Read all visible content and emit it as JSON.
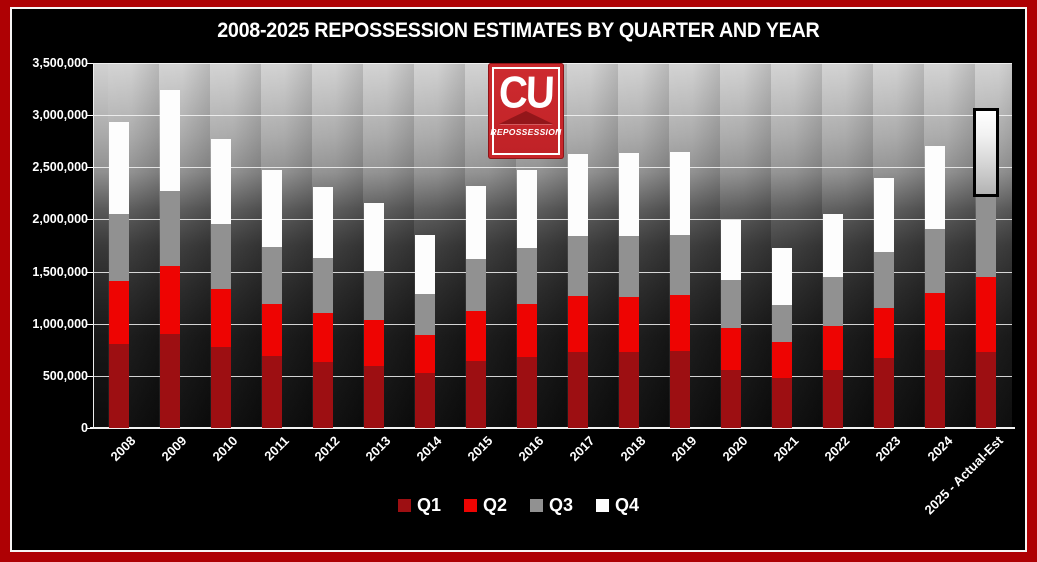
{
  "frame": {
    "border_color": "#ae0104",
    "inner_line_color": "#f6f4f4",
    "background": "#000000"
  },
  "title": "2008-2025 REPOSSESSION ESTIMATES BY QUARTER AND YEAR",
  "logo": {
    "line1": "CU",
    "line2": "REPOSSESSION",
    "box_color": "#c8262a"
  },
  "chart_data": {
    "type": "bar",
    "stacked": true,
    "title": "2008-2025 REPOSSESSION ESTIMATES BY QUARTER AND YEAR",
    "xlabel": "",
    "ylabel": "",
    "ylim": [
      0,
      3500000
    ],
    "ytick_step": 500000,
    "yticks": [
      "3,500,000",
      "3,000,000",
      "2,500,000",
      "2,000,000",
      "1,500,000",
      "1,000,000",
      "500,000",
      "0"
    ],
    "grid": true,
    "legend_position": "bottom",
    "categories": [
      "2008",
      "2009",
      "2010",
      "2011",
      "2012",
      "2013",
      "2014",
      "2015",
      "2016",
      "2017",
      "2018",
      "2019",
      "2020",
      "2021",
      "2022",
      "2023",
      "2024",
      "2025 - Actual-Est"
    ],
    "series": [
      {
        "name": "Q1",
        "color": "#9d0f12",
        "values": [
          810000,
          900000,
          775000,
          690000,
          635000,
          595000,
          525000,
          640000,
          685000,
          730000,
          730000,
          740000,
          555000,
          480000,
          555000,
          675000,
          750000,
          730000
        ]
      },
      {
        "name": "Q2",
        "color": "#ee0402",
        "values": [
          600000,
          655000,
          555000,
          500000,
          470000,
          445000,
          370000,
          480000,
          505000,
          540000,
          525000,
          535000,
          405000,
          340000,
          420000,
          480000,
          540000,
          715000
        ]
      },
      {
        "name": "Q3",
        "color": "#919191",
        "values": [
          645000,
          720000,
          625000,
          545000,
          525000,
          465000,
          390000,
          505000,
          540000,
          575000,
          590000,
          580000,
          460000,
          355000,
          470000,
          535000,
          620000,
          770000
        ]
      },
      {
        "name": "Q4",
        "color": "#fdfdfd",
        "values": [
          880000,
          965000,
          820000,
          735000,
          685000,
          655000,
          565000,
          695000,
          740000,
          785000,
          790000,
          795000,
          575000,
          550000,
          605000,
          710000,
          790000,
          800000
        ]
      }
    ],
    "annotations": [
      {
        "type": "estimate-box",
        "category": "2025 - Actual-Est",
        "series": "Q4",
        "border_color": "#000000"
      }
    ]
  }
}
